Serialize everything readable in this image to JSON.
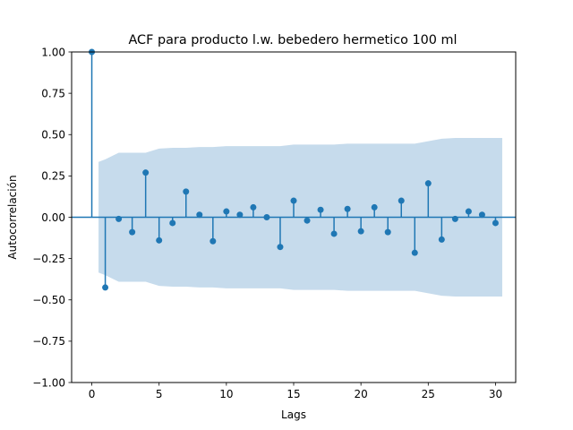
{
  "chart_data": {
    "type": "stem",
    "title": "ACF para producto l.w. bebedero hermetico 100 ml",
    "xlabel": "Lags",
    "ylabel": "Autocorrelación",
    "xlim": [
      -1.5,
      31.5
    ],
    "ylim": [
      -1.0,
      1.0
    ],
    "xticks": [
      0,
      5,
      10,
      15,
      20,
      25,
      30
    ],
    "xtick_labels": [
      "0",
      "5",
      "10",
      "15",
      "20",
      "25",
      "30"
    ],
    "yticks": [
      -1.0,
      -0.75,
      -0.5,
      -0.25,
      0.0,
      0.25,
      0.5,
      0.75,
      1.0
    ],
    "ytick_labels": [
      "−1.00",
      "−0.75",
      "−0.50",
      "−0.25",
      "0.00",
      "0.25",
      "0.50",
      "0.75",
      "1.00"
    ],
    "grid": false,
    "legend": "none",
    "colors": {
      "stem": "#1f77b4",
      "band": "#c6dbec"
    },
    "lags": [
      0,
      1,
      2,
      3,
      4,
      5,
      6,
      7,
      8,
      9,
      10,
      11,
      12,
      13,
      14,
      15,
      16,
      17,
      18,
      19,
      20,
      21,
      22,
      23,
      24,
      25,
      26,
      27,
      28,
      29,
      30
    ],
    "values": [
      1.0,
      -0.425,
      -0.01,
      -0.09,
      0.27,
      -0.14,
      -0.035,
      0.155,
      0.015,
      -0.145,
      0.035,
      0.015,
      0.06,
      0.0,
      -0.18,
      0.1,
      -0.02,
      0.045,
      -0.1,
      0.05,
      -0.085,
      0.06,
      -0.09,
      0.1,
      -0.215,
      0.205,
      -0.135,
      -0.01,
      0.035,
      0.015,
      -0.035
    ],
    "confidence_band": {
      "lags": [
        0.5,
        1,
        2,
        3,
        4,
        5,
        6,
        7,
        8,
        9,
        10,
        11,
        12,
        13,
        14,
        15,
        16,
        17,
        18,
        19,
        20,
        21,
        22,
        23,
        24,
        25,
        26,
        27,
        28,
        29,
        30,
        30.5
      ],
      "upper": [
        0.335,
        0.35,
        0.39,
        0.39,
        0.39,
        0.415,
        0.42,
        0.42,
        0.425,
        0.425,
        0.43,
        0.43,
        0.43,
        0.43,
        0.43,
        0.44,
        0.44,
        0.44,
        0.44,
        0.445,
        0.445,
        0.445,
        0.445,
        0.445,
        0.445,
        0.46,
        0.475,
        0.48,
        0.48,
        0.48,
        0.48,
        0.48
      ]
    }
  }
}
